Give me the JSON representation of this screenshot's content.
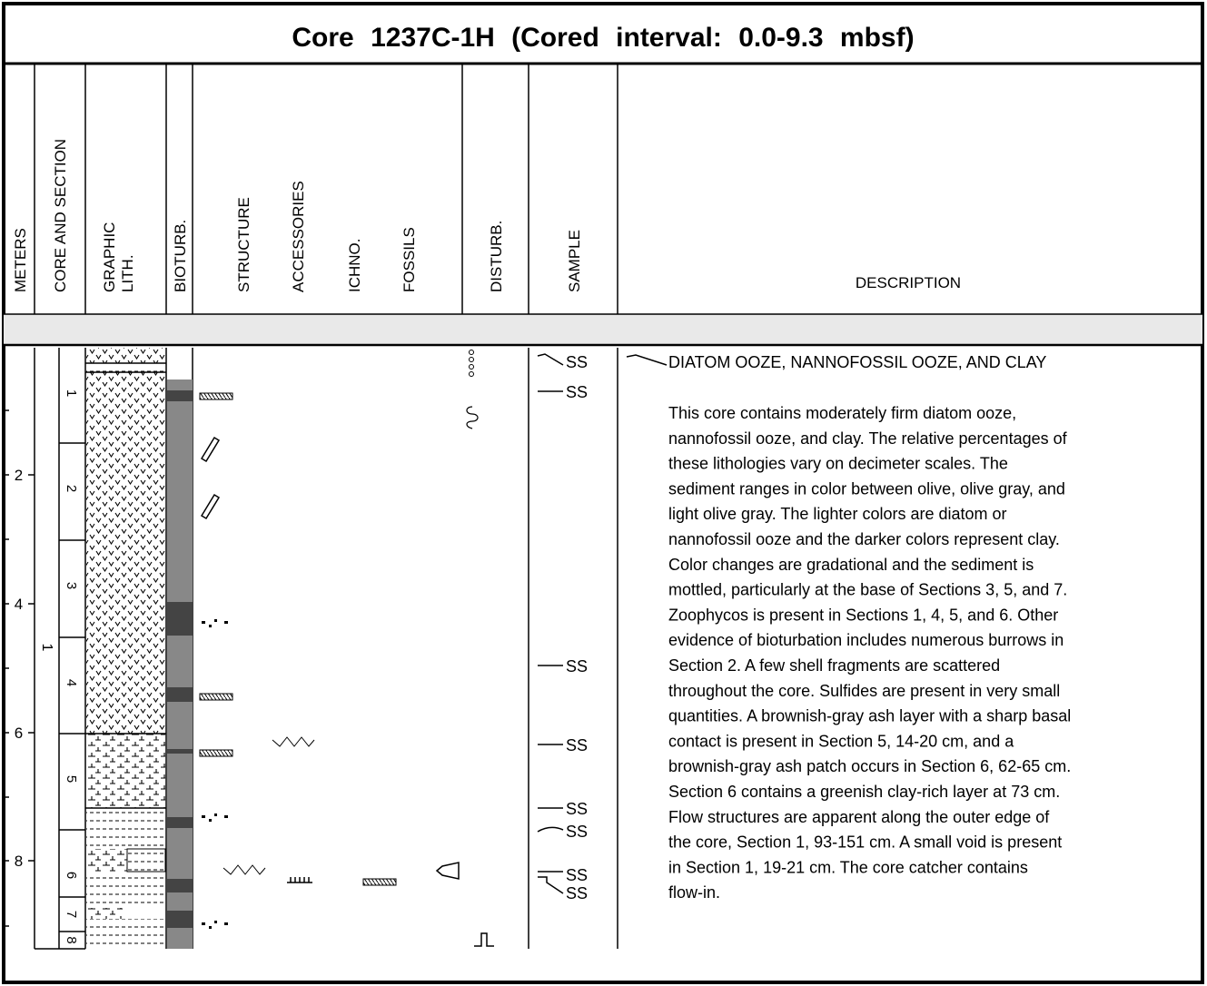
{
  "header": {
    "title": "Core 1237C-1H (Cored interval: 0.0-9.3 mbsf)"
  },
  "columns": {
    "meters": "METERS",
    "core_and_section": "CORE AND SECTION",
    "graphic_lith": [
      "GRAPHIC",
      "LITH."
    ],
    "bioturb": "BIOTURB.",
    "structure": "STRUCTURE",
    "accessories": "ACCESSORIES",
    "ichno": "ICHNO.",
    "fossils": "FOSSILS",
    "disturb": "DISTURB.",
    "sample": "SAMPLE",
    "description": "DESCRIPTION"
  },
  "depth_labels": [
    "2",
    "4",
    "6",
    "8"
  ],
  "core": "1",
  "sections": [
    "1",
    "2",
    "3",
    "4",
    "5",
    "6",
    "7",
    "8"
  ],
  "samples": [
    "SS",
    "SS",
    "SS",
    "SS",
    "SS",
    "SS",
    "SS",
    "SS"
  ],
  "description": {
    "heading": "DIATOM OOZE, NANNOFOSSIL OOZE, AND CLAY",
    "lines": [
      "This core contains moderately firm diatom ooze,",
      "nannofossil ooze, and clay. The relative percentages of",
      "these lithologies vary on decimeter scales. The",
      "sediment ranges in color between olive, olive gray, and",
      "light olive gray. The lighter colors are diatom or",
      "nannofossil ooze and the darker colors represent clay.",
      "Color changes are gradational and the sediment is",
      "mottled, particularly at the base of Sections 3, 5, and 7.",
      "Zoophycos is present in Sections 1, 4, 5, and 6. Other",
      "evidence of bioturbation includes numerous burrows in",
      "Section 2. A few shell fragments are scattered",
      "throughout the core. Sulfides are present in very small",
      "quantities. A brownish-gray ash layer with a sharp basal",
      "contact is present in Section 5, 14-20 cm, and a",
      "brownish-gray ash patch occurs in Section 6, 62-65 cm.",
      "Section 6 contains a greenish clay-rich layer at 73 cm.",
      "Flow structures are apparent along the outer edge of",
      "the core, Section 1, 93-151 cm. A small void is present",
      "in Section 1, 19-21 cm. The core catcher contains",
      "flow-in."
    ]
  }
}
